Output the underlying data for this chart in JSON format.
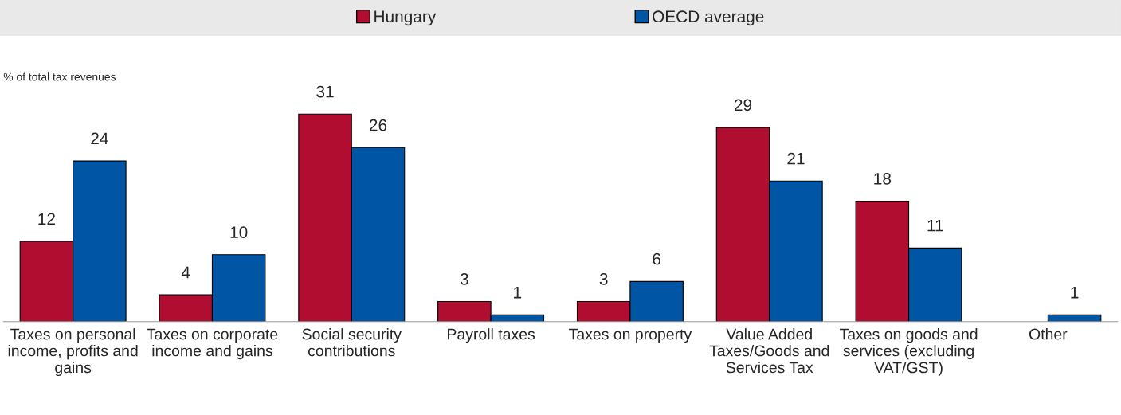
{
  "chart_data": {
    "type": "bar",
    "ylabel": "% of total tax revenues",
    "categories": [
      "Taxes on personal income, profits and gains",
      "Taxes on corporate income and gains",
      "Social security contributions",
      "Payroll taxes",
      "Taxes on property",
      "Value Added Taxes/Goods and Services Tax",
      "Taxes on goods and services (excluding VAT/GST)",
      "Other"
    ],
    "series": [
      {
        "name": "Hungary",
        "color": "#b00d31",
        "values": [
          12,
          4,
          31,
          3,
          3,
          29,
          18,
          null
        ]
      },
      {
        "name": "OECD average",
        "color": "#0055a4",
        "values": [
          24,
          10,
          26,
          1,
          6,
          21,
          11,
          1
        ]
      }
    ],
    "data_labels": true,
    "legend": "top",
    "grid": false
  }
}
